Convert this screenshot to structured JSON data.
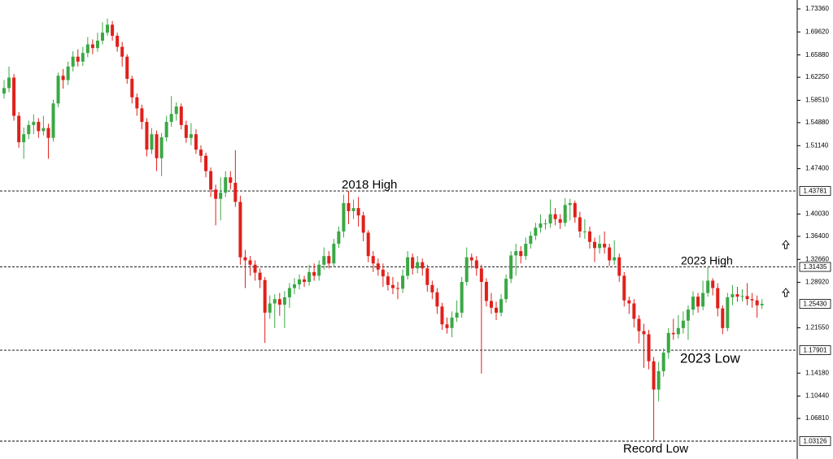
{
  "chart_data": {
    "type": "candlestick",
    "up_color": "#3aa845",
    "down_color": "#e0201b",
    "ylim": [
      1.0022,
      1.7481
    ],
    "yticks": [
      {
        "value": 1.7336,
        "label": "1.73360"
      },
      {
        "value": 1.6962,
        "label": "1.69620"
      },
      {
        "value": 1.6588,
        "label": "1.65880"
      },
      {
        "value": 1.6225,
        "label": "1.62250"
      },
      {
        "value": 1.5851,
        "label": "1.58510"
      },
      {
        "value": 1.5488,
        "label": "1.54880"
      },
      {
        "value": 1.5114,
        "label": "1.51140"
      },
      {
        "value": 1.474,
        "label": "1.47400"
      },
      {
        "value": 1.4003,
        "label": "1.40030"
      },
      {
        "value": 1.364,
        "label": "1.36400"
      },
      {
        "value": 1.3266,
        "label": "1.32660"
      },
      {
        "value": 1.2892,
        "label": "1.28920"
      },
      {
        "value": 1.2155,
        "label": "1.21550"
      },
      {
        "value": 1.1418,
        "label": "1.14180"
      },
      {
        "value": 1.1044,
        "label": "1.10440"
      },
      {
        "value": 1.0681,
        "label": "1.06810"
      }
    ],
    "levels": [
      {
        "value": 1.43781,
        "label": "1.43781"
      },
      {
        "value": 1.31435,
        "label": "1.31435"
      },
      {
        "value": 1.17901,
        "label": "1.17901"
      },
      {
        "value": 1.03126,
        "label": "1.03126"
      }
    ],
    "last_price": {
      "value": 1.2543,
      "label": "1.25430"
    },
    "annotations": [
      "2018 High",
      "2023 High",
      "2023 Low",
      "Record Low"
    ],
    "open": [
      1.596,
      1.605,
      1.622,
      1.56,
      1.517,
      1.53,
      1.545,
      1.55,
      1.535,
      1.54,
      1.524,
      1.58,
      1.625,
      1.618,
      1.64,
      1.656,
      1.648,
      1.662,
      1.676,
      1.67,
      1.682,
      1.695,
      1.708,
      1.69,
      1.672,
      1.656,
      1.62,
      1.59,
      1.572,
      1.55,
      1.505,
      1.53,
      1.491,
      1.525,
      1.55,
      1.563,
      1.575,
      1.545,
      1.524,
      1.53,
      1.505,
      1.495,
      1.47,
      1.44,
      1.425,
      1.435,
      1.46,
      1.451,
      1.42,
      1.33,
      1.325,
      1.318,
      1.305,
      1.293,
      1.24,
      1.255,
      1.262,
      1.253,
      1.265,
      1.28,
      1.286,
      1.294,
      1.29,
      1.306,
      1.3,
      1.318,
      1.332,
      1.32,
      1.352,
      1.372,
      1.418,
      1.405,
      1.41,
      1.398,
      1.37,
      1.332,
      1.32,
      1.31,
      1.299,
      1.285,
      1.28,
      1.279,
      1.3,
      1.33,
      1.312,
      1.322,
      1.312,
      1.285,
      1.273,
      1.25,
      1.221,
      1.215,
      1.232,
      1.24,
      1.29,
      1.33,
      1.325,
      1.312,
      1.29,
      1.259,
      1.248,
      1.24,
      1.262,
      1.295,
      1.333,
      1.34,
      1.332,
      1.352,
      1.365,
      1.378,
      1.385,
      1.385,
      1.4,
      1.392,
      1.386,
      1.415,
      1.418,
      1.395,
      1.372,
      1.372,
      1.355,
      1.345,
      1.352,
      1.346,
      1.325,
      1.33,
      1.3,
      1.26,
      1.255,
      1.23,
      1.21,
      1.205,
      1.161,
      1.115,
      1.145,
      1.175,
      1.207,
      1.205,
      1.215,
      1.227,
      1.245,
      1.266,
      1.25,
      1.272,
      1.292,
      1.28,
      1.247,
      1.215,
      1.265,
      1.27,
      1.266,
      1.267,
      1.262,
      1.26,
      1.252
    ],
    "high": [
      1.618,
      1.64,
      1.628,
      1.566,
      1.541,
      1.552,
      1.562,
      1.556,
      1.56,
      1.547,
      1.586,
      1.63,
      1.636,
      1.648,
      1.665,
      1.668,
      1.672,
      1.688,
      1.684,
      1.695,
      1.712,
      1.718,
      1.714,
      1.695,
      1.68,
      1.66,
      1.625,
      1.596,
      1.578,
      1.556,
      1.54,
      1.536,
      1.532,
      1.56,
      1.592,
      1.582,
      1.58,
      1.552,
      1.548,
      1.538,
      1.512,
      1.5,
      1.476,
      1.448,
      1.46,
      1.47,
      1.47,
      1.504,
      1.43,
      1.342,
      1.332,
      1.325,
      1.312,
      1.298,
      1.268,
      1.27,
      1.272,
      1.275,
      1.288,
      1.296,
      1.302,
      1.3,
      1.318,
      1.32,
      1.325,
      1.346,
      1.34,
      1.36,
      1.38,
      1.432,
      1.4378,
      1.424,
      1.428,
      1.404,
      1.374,
      1.34,
      1.328,
      1.32,
      1.306,
      1.298,
      1.29,
      1.31,
      1.34,
      1.336,
      1.332,
      1.328,
      1.318,
      1.292,
      1.28,
      1.256,
      1.232,
      1.242,
      1.26,
      1.298,
      1.346,
      1.336,
      1.332,
      1.318,
      1.296,
      1.272,
      1.258,
      1.27,
      1.302,
      1.34,
      1.352,
      1.348,
      1.362,
      1.372,
      1.386,
      1.4,
      1.392,
      1.424,
      1.41,
      1.4,
      1.426,
      1.425,
      1.422,
      1.404,
      1.392,
      1.38,
      1.362,
      1.366,
      1.372,
      1.352,
      1.358,
      1.336,
      1.306,
      1.266,
      1.262,
      1.236,
      1.222,
      1.212,
      1.168,
      1.16,
      1.182,
      1.215,
      1.23,
      1.236,
      1.242,
      1.252,
      1.275,
      1.272,
      1.292,
      1.31435,
      1.296,
      1.288,
      1.252,
      1.272,
      1.285,
      1.282,
      1.278,
      1.288,
      1.272,
      1.268,
      1.262
    ],
    "low": [
      1.588,
      1.598,
      1.552,
      1.508,
      1.49,
      1.522,
      1.53,
      1.524,
      1.528,
      1.49,
      1.518,
      1.574,
      1.604,
      1.61,
      1.632,
      1.64,
      1.641,
      1.655,
      1.66,
      1.664,
      1.676,
      1.69,
      1.682,
      1.664,
      1.64,
      1.612,
      1.58,
      1.56,
      1.538,
      1.494,
      1.498,
      1.47,
      1.462,
      1.518,
      1.542,
      1.552,
      1.538,
      1.516,
      1.512,
      1.498,
      1.484,
      1.46,
      1.428,
      1.382,
      1.39,
      1.428,
      1.44,
      1.412,
      1.318,
      1.28,
      1.3,
      1.292,
      1.28,
      1.191,
      1.23,
      1.215,
      1.235,
      1.215,
      1.248,
      1.27,
      1.278,
      1.282,
      1.284,
      1.292,
      1.292,
      1.31,
      1.312,
      1.314,
      1.345,
      1.362,
      1.384,
      1.392,
      1.38,
      1.356,
      1.322,
      1.306,
      1.3,
      1.282,
      1.276,
      1.27,
      1.262,
      1.272,
      1.294,
      1.302,
      1.304,
      1.3,
      1.274,
      1.262,
      1.238,
      1.212,
      1.206,
      1.2,
      1.225,
      1.232,
      1.284,
      1.312,
      1.3,
      1.141,
      1.25,
      1.238,
      1.228,
      1.234,
      1.256,
      1.288,
      1.3,
      1.32,
      1.326,
      1.344,
      1.358,
      1.37,
      1.375,
      1.378,
      1.382,
      1.376,
      1.38,
      1.39,
      1.386,
      1.362,
      1.36,
      1.344,
      1.322,
      1.336,
      1.336,
      1.316,
      1.318,
      1.29,
      1.25,
      1.238,
      1.216,
      1.19,
      1.15,
      1.148,
      1.03126,
      1.096,
      1.136,
      1.165,
      1.196,
      1.198,
      1.206,
      1.196,
      1.236,
      1.24,
      1.244,
      1.266,
      1.268,
      1.234,
      1.205,
      1.21,
      1.252,
      1.258,
      1.258,
      1.252,
      1.248,
      1.232,
      1.246
    ],
    "close": [
      1.605,
      1.622,
      1.56,
      1.517,
      1.53,
      1.545,
      1.55,
      1.535,
      1.54,
      1.524,
      1.58,
      1.625,
      1.618,
      1.64,
      1.656,
      1.648,
      1.662,
      1.676,
      1.67,
      1.682,
      1.695,
      1.708,
      1.69,
      1.672,
      1.656,
      1.62,
      1.59,
      1.572,
      1.55,
      1.505,
      1.53,
      1.491,
      1.525,
      1.55,
      1.563,
      1.575,
      1.545,
      1.524,
      1.53,
      1.505,
      1.495,
      1.47,
      1.44,
      1.425,
      1.435,
      1.46,
      1.451,
      1.42,
      1.33,
      1.325,
      1.318,
      1.305,
      1.293,
      1.24,
      1.255,
      1.262,
      1.253,
      1.265,
      1.28,
      1.286,
      1.294,
      1.29,
      1.306,
      1.3,
      1.318,
      1.332,
      1.32,
      1.352,
      1.372,
      1.418,
      1.405,
      1.41,
      1.398,
      1.37,
      1.332,
      1.32,
      1.31,
      1.299,
      1.285,
      1.28,
      1.279,
      1.3,
      1.33,
      1.312,
      1.322,
      1.312,
      1.285,
      1.273,
      1.25,
      1.221,
      1.215,
      1.232,
      1.24,
      1.29,
      1.33,
      1.325,
      1.312,
      1.29,
      1.259,
      1.248,
      1.24,
      1.262,
      1.295,
      1.333,
      1.34,
      1.332,
      1.352,
      1.365,
      1.378,
      1.385,
      1.385,
      1.4,
      1.392,
      1.386,
      1.415,
      1.418,
      1.395,
      1.372,
      1.372,
      1.355,
      1.345,
      1.352,
      1.346,
      1.325,
      1.33,
      1.3,
      1.26,
      1.255,
      1.23,
      1.21,
      1.205,
      1.161,
      1.115,
      1.145,
      1.175,
      1.207,
      1.205,
      1.215,
      1.227,
      1.245,
      1.266,
      1.25,
      1.272,
      1.292,
      1.28,
      1.247,
      1.215,
      1.265,
      1.27,
      1.266,
      1.267,
      1.262,
      1.26,
      1.252,
      1.2543
    ]
  }
}
